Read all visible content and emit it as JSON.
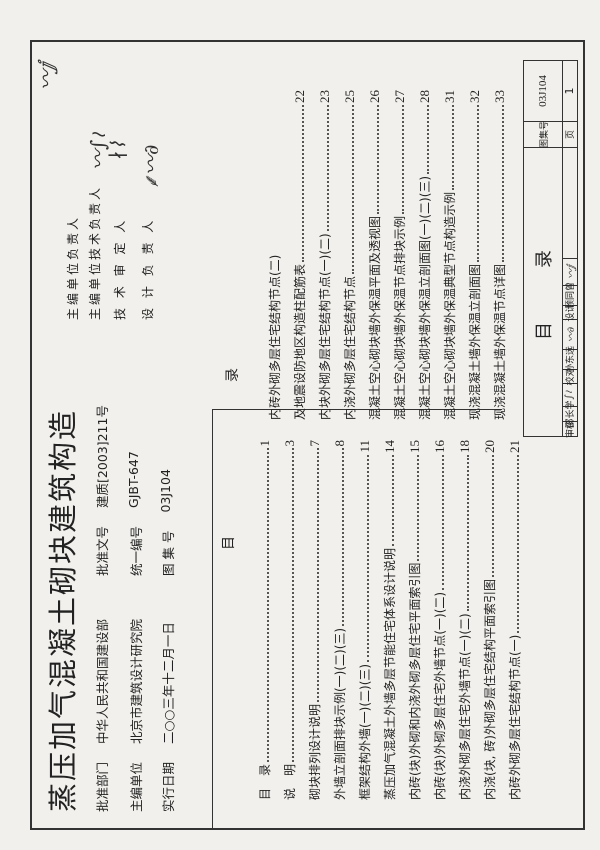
{
  "title": "蒸压加气混凝土砌块建筑构造",
  "info": [
    {
      "label": "批准部门",
      "value": "中华人民共和国建设部",
      "label2": "批准文号",
      "value2": "建质[2003]211号"
    },
    {
      "label": "主编单位",
      "value": "北京市建筑设计研究院",
      "label2": "统一编号",
      "value2": "GJBT-647"
    },
    {
      "label": "实行日期",
      "value": "二○○三年十二月一日",
      "label2": "图 集 号",
      "value2": "03J104"
    }
  ],
  "responsibility": [
    {
      "role": "主编单位负责人",
      "signature": "（签名）"
    },
    {
      "role": "主编单位技术负责人",
      "signature": "（签名）"
    },
    {
      "role": "技 术 审 定 人",
      "signature": "（签名）"
    },
    {
      "role": "设 计 负 责 人",
      "signature": "（签名）"
    }
  ],
  "toc": {
    "header_left": "目",
    "header_right": "录",
    "left": [
      {
        "text": "目　录",
        "page": "1"
      },
      {
        "text": "说　明",
        "page": "3"
      },
      {
        "text": "砌块排列设计说明",
        "page": "7"
      },
      {
        "text": "外墙立剖面排块示例(一)(二)(三)",
        "page": "8"
      },
      {
        "text": "框架结构外墙(一)(二)(三)",
        "page": "11"
      },
      {
        "text": "蒸压加气混凝土外墙多层节能住宅体系设计说明",
        "page": "14"
      },
      {
        "text": "内砖(块)外砌和内浇外砌多层住宅平面索引图",
        "page": "15"
      },
      {
        "text": "内砖(块)外砌多层住宅外墙节点(一)(二)",
        "page": "16"
      },
      {
        "text": "内浇外砌多层住宅外墙节点(一)(二)",
        "page": "18"
      },
      {
        "text": "内浇(块, 砖)外砌多层住宅结构平面索引图",
        "page": "20"
      },
      {
        "text": "内砖外砌多层住宅结构节点(一)",
        "page": "21"
      }
    ],
    "right": [
      {
        "text": "内砖外砌多层住宅结构节点(二)",
        "page": ""
      },
      {
        "text": "及地震设防地区构造柱配筋表",
        "page": "22"
      },
      {
        "text": "内块外砌多层住宅结构节点(一)(二)",
        "page": "23"
      },
      {
        "text": "内浇外砌多层住宅结构节点",
        "page": "25"
      },
      {
        "text": "混凝土空心砌块墙外保温平面及透视图",
        "page": "26"
      },
      {
        "text": "混凝土空心砌块墙外保温节点排块示例",
        "page": "27"
      },
      {
        "text": "混凝土空心砌块墙外保温立剖面图(一)(二)(三)",
        "page": "28"
      },
      {
        "text": "混凝土空心砌块墙外保温典型节点构造示例",
        "page": "31"
      },
      {
        "text": "现浇混凝土墙外保温立剖面图",
        "page": "32"
      },
      {
        "text": "现浇混凝土墙外保温节点详图",
        "page": "33"
      }
    ]
  },
  "title_block": {
    "sheet_title": "目　　录",
    "atlas_label": "图集号",
    "atlas_no": "03J104",
    "page_label": "页",
    "page_no": "1",
    "review_label": "审核",
    "reviewer": "邵长学",
    "check_label": "校对",
    "checker": "孙东远",
    "design_label": "设计",
    "designer": "顾同曾"
  }
}
